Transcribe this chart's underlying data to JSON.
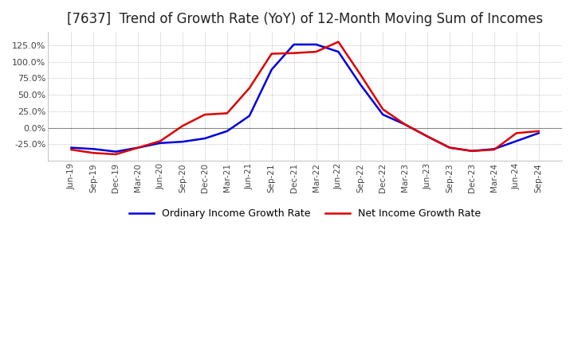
{
  "title": "[7637]  Trend of Growth Rate (YoY) of 12-Month Moving Sum of Incomes",
  "title_fontsize": 12,
  "legend_labels": [
    "Ordinary Income Growth Rate",
    "Net Income Growth Rate"
  ],
  "legend_colors": [
    "#0000dd",
    "#dd0000"
  ],
  "x_labels": [
    "Jun-19",
    "Sep-19",
    "Dec-19",
    "Mar-20",
    "Jun-20",
    "Sep-20",
    "Dec-20",
    "Mar-21",
    "Jun-21",
    "Sep-21",
    "Dec-21",
    "Mar-22",
    "Jun-22",
    "Sep-22",
    "Dec-22",
    "Mar-23",
    "Jun-23",
    "Sep-23",
    "Dec-23",
    "Mar-24",
    "Jun-24",
    "Sep-24"
  ],
  "ordinary_income_growth": [
    -30,
    -32,
    -36,
    -30,
    -23,
    -21,
    -16,
    -5,
    18,
    88,
    126,
    126,
    115,
    65,
    20,
    5,
    -13,
    -30,
    -35,
    -32,
    -20,
    -8
  ],
  "net_income_growth": [
    -33,
    -38,
    -40,
    -30,
    -20,
    3,
    20,
    22,
    60,
    112,
    113,
    115,
    130,
    80,
    28,
    5,
    -13,
    -30,
    -35,
    -33,
    -8,
    -5
  ],
  "ylim": [
    -50,
    145
  ],
  "yticks": [
    -25,
    0,
    25,
    50,
    75,
    100,
    125
  ],
  "background_color": "#ffffff",
  "grid_color": "#aaaaaa",
  "plot_bg_color": "#ffffff"
}
